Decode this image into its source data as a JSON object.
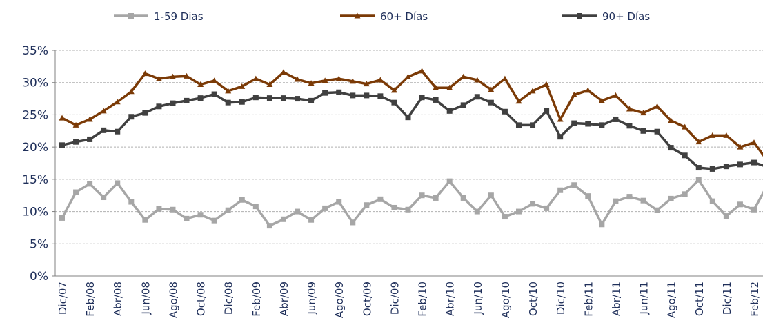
{
  "chart_data": {
    "type": "line",
    "categories": [
      "Dic/07",
      null,
      "Feb/08",
      null,
      "Abr/08",
      null,
      "Jun/08",
      null,
      "Ago/08",
      null,
      "Oct/08",
      null,
      "Dic/08",
      null,
      "Feb/09",
      null,
      "Abr/09",
      null,
      "Jun/09",
      null,
      "Ago/09",
      null,
      "Oct/09",
      null,
      "Dic/09",
      null,
      "Feb/10",
      null,
      "Abr/10",
      null,
      "Jun/10",
      null,
      "Ago/10",
      null,
      "Oct/10",
      null,
      "Dic/10",
      null,
      "Feb/11",
      null,
      "Abr/11",
      null,
      "Jun/11",
      null,
      "Ago/11",
      null,
      "Oct/11",
      null,
      "Dic/11",
      null,
      "Feb/12",
      null
    ],
    "series": [
      {
        "name": "1-59 Dias",
        "color": "#a6a6a6",
        "marker": "square",
        "values": [
          9,
          13,
          14.3,
          12.2,
          14.4,
          11.5,
          8.7,
          10.4,
          10.3,
          8.9,
          9.5,
          8.6,
          10.2,
          11.8,
          10.8,
          7.8,
          8.8,
          10,
          8.7,
          10.5,
          11.5,
          8.3,
          11,
          11.9,
          10.6,
          10.3,
          12.5,
          12.1,
          14.7,
          12.1,
          10,
          12.5,
          9.2,
          10,
          11.2,
          10.5,
          13.3,
          14.1,
          12.4,
          8,
          11.6,
          12.3,
          11.7,
          10.2,
          12,
          12.7,
          14.9,
          11.6,
          9.3,
          11.1,
          10.3,
          14.2
        ]
      },
      {
        "name": "60+ Días",
        "color": "#7b3a06",
        "marker": "triangle",
        "values": [
          24.5,
          23.4,
          24.3,
          25.6,
          27,
          28.6,
          31.4,
          30.6,
          30.9,
          31,
          29.7,
          30.3,
          28.7,
          29.4,
          30.6,
          29.7,
          31.6,
          30.5,
          29.9,
          30.3,
          30.6,
          30.2,
          29.8,
          30.4,
          28.8,
          30.9,
          31.8,
          29.2,
          29.2,
          30.9,
          30.4,
          28.9,
          30.6,
          27.1,
          28.7,
          29.7,
          24.3,
          28.1,
          28.8,
          27.2,
          28,
          25.9,
          25.3,
          26.3,
          24.1,
          23.1,
          20.8,
          21.8,
          21.8,
          20,
          20.7,
          17.8
        ]
      },
      {
        "name": "90+ Días",
        "color": "#404040",
        "marker": "square",
        "values": [
          20.3,
          20.8,
          21.2,
          22.6,
          22.4,
          24.7,
          25.3,
          26.3,
          26.8,
          27.2,
          27.6,
          28.2,
          26.9,
          27,
          27.7,
          27.6,
          27.6,
          27.5,
          27.2,
          28.4,
          28.5,
          28,
          28,
          27.9,
          26.9,
          24.6,
          27.7,
          27.3,
          25.6,
          26.5,
          27.8,
          26.9,
          25.5,
          23.4,
          23.4,
          25.6,
          21.6,
          23.7,
          23.6,
          23.4,
          24.3,
          23.3,
          22.5,
          22.4,
          19.9,
          18.7,
          16.8,
          16.6,
          17,
          17.3,
          17.6,
          16.9
        ]
      }
    ],
    "ylim": [
      0,
      35
    ],
    "yticks": [
      {
        "value": 0,
        "label": "0%"
      },
      {
        "value": 5,
        "label": "5%"
      },
      {
        "value": 10,
        "label": "10%"
      },
      {
        "value": 15,
        "label": "15%"
      },
      {
        "value": 20,
        "label": "20%"
      },
      {
        "value": 25,
        "label": "25%"
      },
      {
        "value": 30,
        "label": "30%"
      },
      {
        "value": 35,
        "label": "35%"
      }
    ],
    "grid": true,
    "legend": "top"
  }
}
